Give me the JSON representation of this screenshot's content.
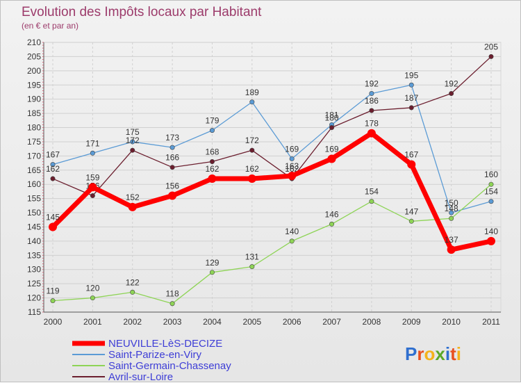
{
  "chart_data": {
    "type": "line",
    "title": "Evolution des Impôts locaux par Habitant",
    "subtitle": "(en € et par an)",
    "x": [
      "2000",
      "2001",
      "2002",
      "2003",
      "2004",
      "2005",
      "2006",
      "2007",
      "2008",
      "2009",
      "2010",
      "2011"
    ],
    "yticks": [
      "115",
      "120",
      "125",
      "130",
      "135",
      "140",
      "145",
      "150",
      "155",
      "160",
      "165",
      "170",
      "175",
      "180",
      "185",
      "190",
      "195",
      "200",
      "205",
      "210"
    ],
    "ylim": [
      115,
      210
    ],
    "grid": true,
    "legend_position": "bottom-left",
    "series": [
      {
        "name": "NEUVILLE-LèS-DECIZE",
        "color": "#ff0000",
        "values": [
          145,
          159,
          152,
          156,
          162,
          162,
          163,
          169,
          178,
          167,
          137,
          140
        ],
        "labels": [
          "145",
          "159",
          "152",
          "156",
          "162",
          "162",
          "163",
          "169",
          "178",
          "167",
          "137",
          "140"
        ]
      },
      {
        "name": "Saint-Parize-en-Viry",
        "color": "#5b9bd5",
        "values": [
          167,
          171,
          175,
          173,
          179,
          189,
          169,
          181,
          192,
          195,
          150,
          154
        ],
        "labels": [
          "167",
          "171",
          "175",
          "173",
          "179",
          "189",
          "169",
          "181",
          "192",
          "195",
          "150",
          "154"
        ]
      },
      {
        "name": "Saint-Germain-Chassenay",
        "color": "#8ed456",
        "values": [
          119,
          120,
          122,
          118,
          129,
          131,
          140,
          146,
          154,
          147,
          148,
          160
        ],
        "labels": [
          "119",
          "120",
          "122",
          "118",
          "129",
          "131",
          "140",
          "146",
          "154",
          "147",
          "148",
          "160"
        ]
      },
      {
        "name": "Avril-sur-Loire",
        "color": "#6b1e2e",
        "values": [
          162,
          156,
          172,
          166,
          168,
          172,
          162,
          180,
          186,
          187,
          192,
          205
        ],
        "labels": [
          "162",
          "156",
          "172",
          "166",
          "168",
          "172",
          "162",
          "180",
          "186",
          "187",
          "192",
          "205"
        ]
      }
    ]
  },
  "logo": {
    "text": "Proxiti"
  }
}
